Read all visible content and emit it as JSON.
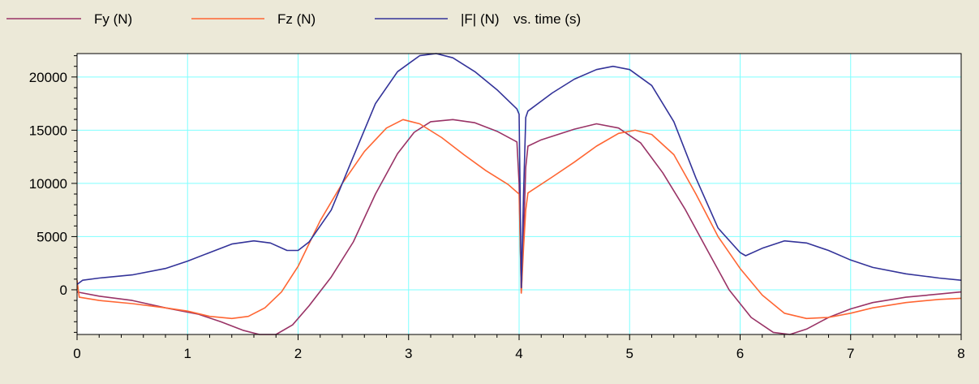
{
  "chart_data": {
    "type": "line",
    "title": "",
    "xlabel": "",
    "ylabel": "",
    "xlim": [
      0,
      8
    ],
    "ylim": [
      -4200,
      22200
    ],
    "grid": true,
    "legend_position": "top",
    "legend_suffix": "vs. time (s)",
    "x_ticks": [
      0,
      1,
      2,
      3,
      4,
      5,
      6,
      7,
      8
    ],
    "y_ticks": [
      0,
      5000,
      10000,
      15000,
      20000
    ],
    "x_minor_step": 0.2,
    "y_minor_step": 1000,
    "colors": {
      "background": "#ECE9D8",
      "plot_bg": "#FFFFFF",
      "grid": "#7FFFFF",
      "axis": "#000000"
    },
    "series": [
      {
        "name": "Fy (N)",
        "color": "#993366",
        "points": [
          [
            0,
            -200
          ],
          [
            0.2,
            -600
          ],
          [
            0.5,
            -1000
          ],
          [
            0.8,
            -1700
          ],
          [
            1.1,
            -2300
          ],
          [
            1.3,
            -3000
          ],
          [
            1.5,
            -3800
          ],
          [
            1.65,
            -4200
          ],
          [
            1.8,
            -4200
          ],
          [
            1.95,
            -3300
          ],
          [
            2.1,
            -1500
          ],
          [
            2.3,
            1200
          ],
          [
            2.5,
            4500
          ],
          [
            2.7,
            9000
          ],
          [
            2.9,
            12800
          ],
          [
            3.05,
            14800
          ],
          [
            3.2,
            15800
          ],
          [
            3.4,
            16000
          ],
          [
            3.6,
            15700
          ],
          [
            3.8,
            14900
          ],
          [
            3.98,
            13900
          ],
          [
            4.0,
            10000
          ],
          [
            4.02,
            -300
          ],
          [
            4.04,
            5000
          ],
          [
            4.06,
            11500
          ],
          [
            4.08,
            13500
          ],
          [
            4.2,
            14100
          ],
          [
            4.5,
            15100
          ],
          [
            4.7,
            15600
          ],
          [
            4.9,
            15200
          ],
          [
            5.1,
            13800
          ],
          [
            5.3,
            11000
          ],
          [
            5.5,
            7600
          ],
          [
            5.7,
            3800
          ],
          [
            5.9,
            0
          ],
          [
            6.1,
            -2600
          ],
          [
            6.3,
            -4000
          ],
          [
            6.45,
            -4200
          ],
          [
            6.6,
            -3700
          ],
          [
            6.8,
            -2600
          ],
          [
            7.0,
            -1800
          ],
          [
            7.2,
            -1200
          ],
          [
            7.5,
            -700
          ],
          [
            7.8,
            -400
          ],
          [
            8.0,
            -200
          ]
        ]
      },
      {
        "name": "Fz (N)",
        "color": "#FF6633",
        "points": [
          [
            0,
            900
          ],
          [
            0.02,
            -700
          ],
          [
            0.2,
            -1000
          ],
          [
            0.5,
            -1300
          ],
          [
            0.8,
            -1700
          ],
          [
            1.0,
            -2000
          ],
          [
            1.2,
            -2500
          ],
          [
            1.4,
            -2700
          ],
          [
            1.55,
            -2500
          ],
          [
            1.7,
            -1700
          ],
          [
            1.85,
            -200
          ],
          [
            2.0,
            2200
          ],
          [
            2.2,
            6500
          ],
          [
            2.4,
            10000
          ],
          [
            2.6,
            13000
          ],
          [
            2.8,
            15200
          ],
          [
            2.95,
            16000
          ],
          [
            3.1,
            15600
          ],
          [
            3.3,
            14300
          ],
          [
            3.5,
            12700
          ],
          [
            3.7,
            11200
          ],
          [
            3.9,
            9900
          ],
          [
            4.0,
            9000
          ],
          [
            4.02,
            -300
          ],
          [
            4.04,
            4000
          ],
          [
            4.06,
            7500
          ],
          [
            4.08,
            9100
          ],
          [
            4.3,
            10600
          ],
          [
            4.5,
            12000
          ],
          [
            4.7,
            13500
          ],
          [
            4.9,
            14700
          ],
          [
            5.05,
            15000
          ],
          [
            5.2,
            14600
          ],
          [
            5.4,
            12700
          ],
          [
            5.6,
            9000
          ],
          [
            5.8,
            5000
          ],
          [
            6.0,
            2000
          ],
          [
            6.2,
            -500
          ],
          [
            6.4,
            -2200
          ],
          [
            6.6,
            -2700
          ],
          [
            6.8,
            -2600
          ],
          [
            7.0,
            -2200
          ],
          [
            7.2,
            -1700
          ],
          [
            7.5,
            -1200
          ],
          [
            7.8,
            -900
          ],
          [
            8.0,
            -800
          ]
        ]
      },
      {
        "name": "|F| (N)",
        "color": "#333399",
        "points": [
          [
            0,
            500
          ],
          [
            0.05,
            900
          ],
          [
            0.2,
            1100
          ],
          [
            0.5,
            1400
          ],
          [
            0.8,
            2000
          ],
          [
            1.0,
            2700
          ],
          [
            1.2,
            3500
          ],
          [
            1.4,
            4300
          ],
          [
            1.6,
            4600
          ],
          [
            1.75,
            4400
          ],
          [
            1.9,
            3700
          ],
          [
            2.0,
            3700
          ],
          [
            2.1,
            4500
          ],
          [
            2.3,
            7500
          ],
          [
            2.5,
            12500
          ],
          [
            2.7,
            17500
          ],
          [
            2.9,
            20500
          ],
          [
            3.1,
            22000
          ],
          [
            3.25,
            22200
          ],
          [
            3.4,
            21800
          ],
          [
            3.6,
            20500
          ],
          [
            3.8,
            18800
          ],
          [
            3.98,
            17000
          ],
          [
            4.0,
            16500
          ],
          [
            4.02,
            200
          ],
          [
            4.04,
            9000
          ],
          [
            4.06,
            16200
          ],
          [
            4.08,
            16800
          ],
          [
            4.3,
            18500
          ],
          [
            4.5,
            19800
          ],
          [
            4.7,
            20700
          ],
          [
            4.85,
            21000
          ],
          [
            5.0,
            20700
          ],
          [
            5.2,
            19200
          ],
          [
            5.4,
            15800
          ],
          [
            5.6,
            10500
          ],
          [
            5.8,
            5800
          ],
          [
            6.0,
            3500
          ],
          [
            6.05,
            3200
          ],
          [
            6.2,
            3900
          ],
          [
            6.4,
            4600
          ],
          [
            6.6,
            4400
          ],
          [
            6.8,
            3700
          ],
          [
            7.0,
            2800
          ],
          [
            7.2,
            2100
          ],
          [
            7.5,
            1500
          ],
          [
            7.8,
            1100
          ],
          [
            8.0,
            900
          ]
        ]
      }
    ]
  }
}
